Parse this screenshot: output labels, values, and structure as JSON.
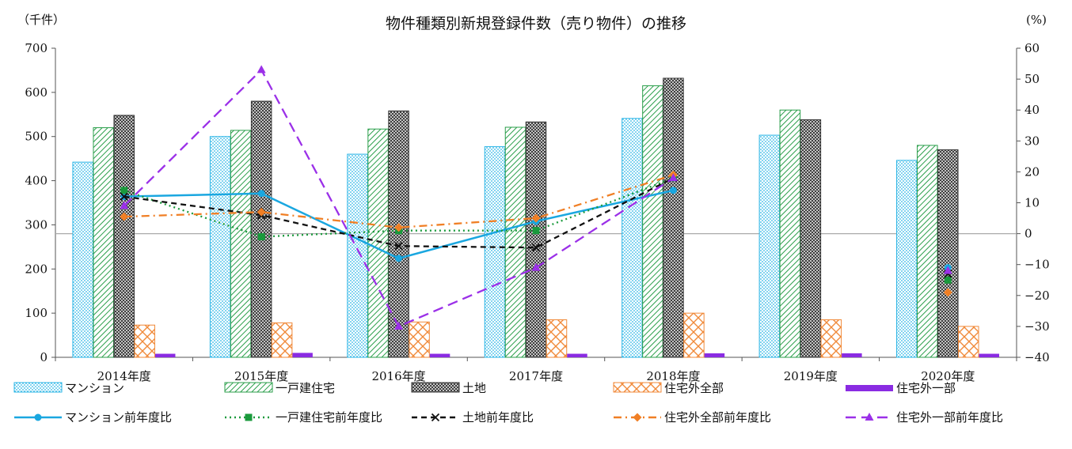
{
  "chart_data": {
    "type": "bar",
    "title": "物件種類別新規登録件数（売り物件）の推移",
    "ylabel_left": "（千件）",
    "ylabel_right": "(%)",
    "ylim_left": [
      0,
      700
    ],
    "ylim_right": [
      -40,
      60
    ],
    "yticks_left": [
      "0",
      "100",
      "200",
      "300",
      "400",
      "500",
      "600",
      "700"
    ],
    "yticks_right": [
      "−40",
      "−30",
      "−20",
      "−10",
      "0",
      "10",
      "20",
      "30",
      "40",
      "50",
      "60"
    ],
    "categories": [
      "2014年度",
      "2015年度",
      "2016年度",
      "2017年度",
      "2018年度",
      "2019年度",
      "2020年度"
    ],
    "bar_series": [
      {
        "name": "マンション",
        "color": "#2bb5e6",
        "pattern": "dots",
        "values": [
          442,
          500,
          460,
          477,
          541,
          503,
          446
        ]
      },
      {
        "name": "一戸建住宅",
        "color": "#2a9e4a",
        "pattern": "diagonal",
        "values": [
          520,
          514,
          517,
          521,
          615,
          560,
          480
        ]
      },
      {
        "name": "土地",
        "color": "#333333",
        "pattern": "crosshatch",
        "values": [
          548,
          580,
          558,
          533,
          632,
          538,
          470
        ]
      },
      {
        "name": "住宅外全部",
        "color": "#f08a3a",
        "pattern": "lattice",
        "values": [
          73,
          78,
          80,
          85,
          100,
          85,
          70
        ]
      },
      {
        "name": "住宅外一部",
        "color": "#8a2be2",
        "pattern": "solid",
        "values": [
          8,
          10,
          8,
          8,
          9,
          9,
          8
        ]
      }
    ],
    "line_series": [
      {
        "name": "マンション前年度比",
        "color": "#1aa7e0",
        "dash": "solid",
        "marker": "circle",
        "values": [
          12,
          13,
          -8,
          4,
          14,
          null,
          -11
        ]
      },
      {
        "name": "一戸建住宅前年度比",
        "color": "#1a9a3c",
        "dash": "dotted",
        "marker": "square",
        "values": [
          14,
          -1,
          1,
          1,
          18,
          null,
          -15
        ]
      },
      {
        "name": "土地前年度比",
        "color": "#111111",
        "dash": "dashed",
        "marker": "x",
        "values": [
          12,
          6,
          -4,
          -4.5,
          18,
          null,
          -13
        ]
      },
      {
        "name": "住宅外全部前年度比",
        "color": "#f07f25",
        "dash": "dashdot",
        "marker": "diamond",
        "values": [
          5.5,
          7,
          2,
          5,
          19,
          null,
          -19
        ]
      },
      {
        "name": "住宅外一部前年度比",
        "color": "#9b30e8",
        "dash": "longdash",
        "marker": "triangle",
        "values": [
          9,
          53,
          -30,
          -11,
          18,
          null,
          -12
        ]
      }
    ],
    "reference_line_right": 0,
    "grid": false,
    "legend_position": "bottom"
  }
}
